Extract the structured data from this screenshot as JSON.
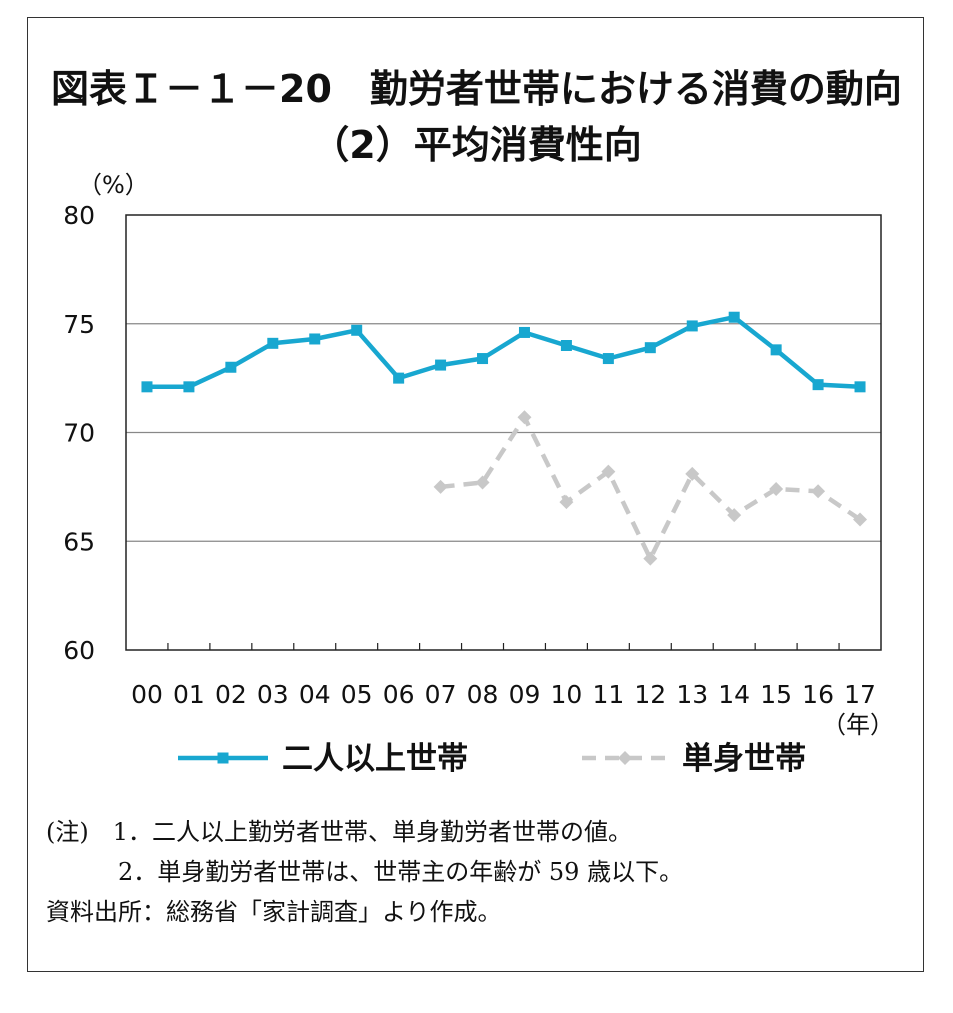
{
  "chart_data": {
    "type": "line",
    "title": "図表Ｉ－１－20　勤労者世帯における消費の動向",
    "subtitle": "（2）平均消費性向",
    "y_unit": "（%）",
    "x_unit": "（年）",
    "ylim": [
      60,
      80
    ],
    "yticks": [
      60,
      65,
      70,
      75,
      80
    ],
    "grid": true,
    "legend_position": "bottom",
    "categories": [
      "00",
      "01",
      "02",
      "03",
      "04",
      "05",
      "06",
      "07",
      "08",
      "09",
      "10",
      "11",
      "12",
      "13",
      "14",
      "15",
      "16",
      "17"
    ],
    "series": [
      {
        "name": "二人以上世帯",
        "color": "#18a7d0",
        "style": "solid",
        "marker": "square",
        "values": [
          72.1,
          72.1,
          73.0,
          74.1,
          74.3,
          74.7,
          72.5,
          73.1,
          73.4,
          74.6,
          74.0,
          73.4,
          73.9,
          74.9,
          75.3,
          73.8,
          72.2,
          72.1
        ]
      },
      {
        "name": "単身世帯",
        "color": "#c8c8c8",
        "style": "dashed",
        "marker": "diamond",
        "values": [
          null,
          null,
          null,
          null,
          null,
          null,
          null,
          67.5,
          67.7,
          70.7,
          66.8,
          68.2,
          64.2,
          68.1,
          66.2,
          67.4,
          67.3,
          66.0
        ]
      }
    ]
  },
  "notes": {
    "line1": "(注)　1．二人以上勤労者世帯、単身勤労者世帯の値。",
    "line2": "　　　2．単身勤労者世帯は、世帯主の年齢が 59 歳以下。",
    "source": "資料出所：総務省「家計調査」より作成。"
  }
}
